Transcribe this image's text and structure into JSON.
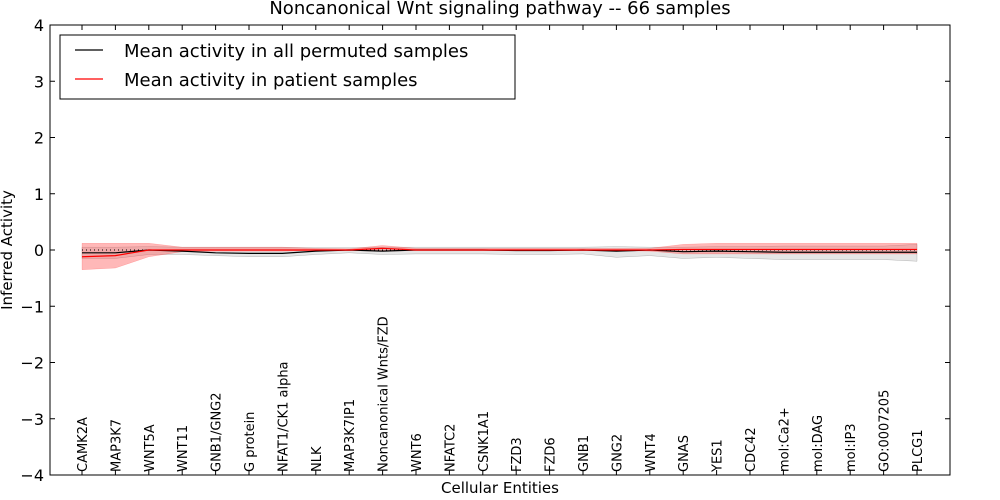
{
  "chart_data": {
    "type": "line",
    "title": "Noncanonical Wnt signaling pathway -- 66 samples",
    "xlabel": "Cellular Entities",
    "ylabel": "Inferred Activity",
    "ylim": [
      -4,
      4
    ],
    "yticks": [
      4,
      3,
      2,
      1,
      0,
      -1,
      -2,
      -3,
      -4
    ],
    "ytick_labels": [
      "4",
      "3",
      "2",
      "1",
      "0",
      "−1",
      "−2",
      "−3",
      "−4"
    ],
    "categories": [
      "CAMK2A",
      "MAP3K7",
      "WNT5A",
      "WNT11",
      "GNB1/GNG2",
      "G protein",
      "NFAT1/CK1 alpha",
      "NLK",
      "MAP3K7IP1",
      "Noncanonical Wnts/FZD",
      "WNT6",
      "NFATC2",
      "CSNK1A1",
      "FZD3",
      "FZD6",
      "GNB1",
      "GNG2",
      "WNT4",
      "GNAS",
      "YES1",
      "CDC42",
      "mol:Ca2+",
      "mol:DAG",
      "mol:IP3",
      "GO:0007205",
      "PLCG1"
    ],
    "legend_position": "top-left",
    "reference_line": 0,
    "series": [
      {
        "name": "Mean activity in all permuted samples",
        "color": "#000000",
        "band_color": "#808080",
        "values": [
          -0.05,
          -0.05,
          0.0,
          -0.02,
          -0.05,
          -0.06,
          -0.06,
          -0.02,
          0.0,
          -0.02,
          0.0,
          0.0,
          0.0,
          -0.01,
          -0.01,
          0.0,
          -0.02,
          0.0,
          -0.03,
          -0.02,
          -0.03,
          -0.04,
          -0.04,
          -0.04,
          -0.04,
          -0.04
        ],
        "lower": [
          -0.15,
          -0.15,
          -0.08,
          -0.08,
          -0.1,
          -0.12,
          -0.12,
          -0.08,
          -0.05,
          -0.08,
          -0.07,
          -0.07,
          -0.07,
          -0.08,
          -0.08,
          -0.07,
          -0.13,
          -0.1,
          -0.15,
          -0.13,
          -0.15,
          -0.17,
          -0.17,
          -0.17,
          -0.17,
          -0.2
        ],
        "upper": [
          0.05,
          0.05,
          0.06,
          0.05,
          0.05,
          0.05,
          0.05,
          0.04,
          0.04,
          0.05,
          0.05,
          0.05,
          0.05,
          0.05,
          0.05,
          0.05,
          0.06,
          0.05,
          0.05,
          0.06,
          0.06,
          0.07,
          0.07,
          0.07,
          0.07,
          0.1
        ]
      },
      {
        "name": "Mean activity in patient samples",
        "color": "#ff0000",
        "band_color": "#ff4d4d",
        "values": [
          -0.12,
          -0.1,
          0.0,
          0.0,
          0.0,
          0.0,
          0.0,
          0.0,
          0.0,
          0.03,
          0.0,
          0.0,
          0.0,
          0.0,
          0.0,
          0.0,
          0.0,
          0.0,
          0.01,
          0.01,
          0.01,
          0.01,
          0.01,
          0.01,
          0.01,
          0.01
        ],
        "lower": [
          -0.35,
          -0.32,
          -0.12,
          -0.03,
          -0.02,
          -0.02,
          -0.02,
          -0.01,
          -0.01,
          -0.02,
          -0.01,
          -0.01,
          -0.01,
          -0.01,
          -0.01,
          -0.01,
          -0.01,
          -0.02,
          -0.07,
          -0.07,
          -0.07,
          -0.07,
          -0.07,
          -0.07,
          -0.07,
          -0.07
        ],
        "upper": [
          0.12,
          0.12,
          0.12,
          0.05,
          0.05,
          0.05,
          0.05,
          0.03,
          0.02,
          0.08,
          0.03,
          0.03,
          0.03,
          0.03,
          0.03,
          0.03,
          0.03,
          0.03,
          0.1,
          0.12,
          0.12,
          0.12,
          0.12,
          0.12,
          0.12,
          0.12
        ]
      }
    ]
  }
}
